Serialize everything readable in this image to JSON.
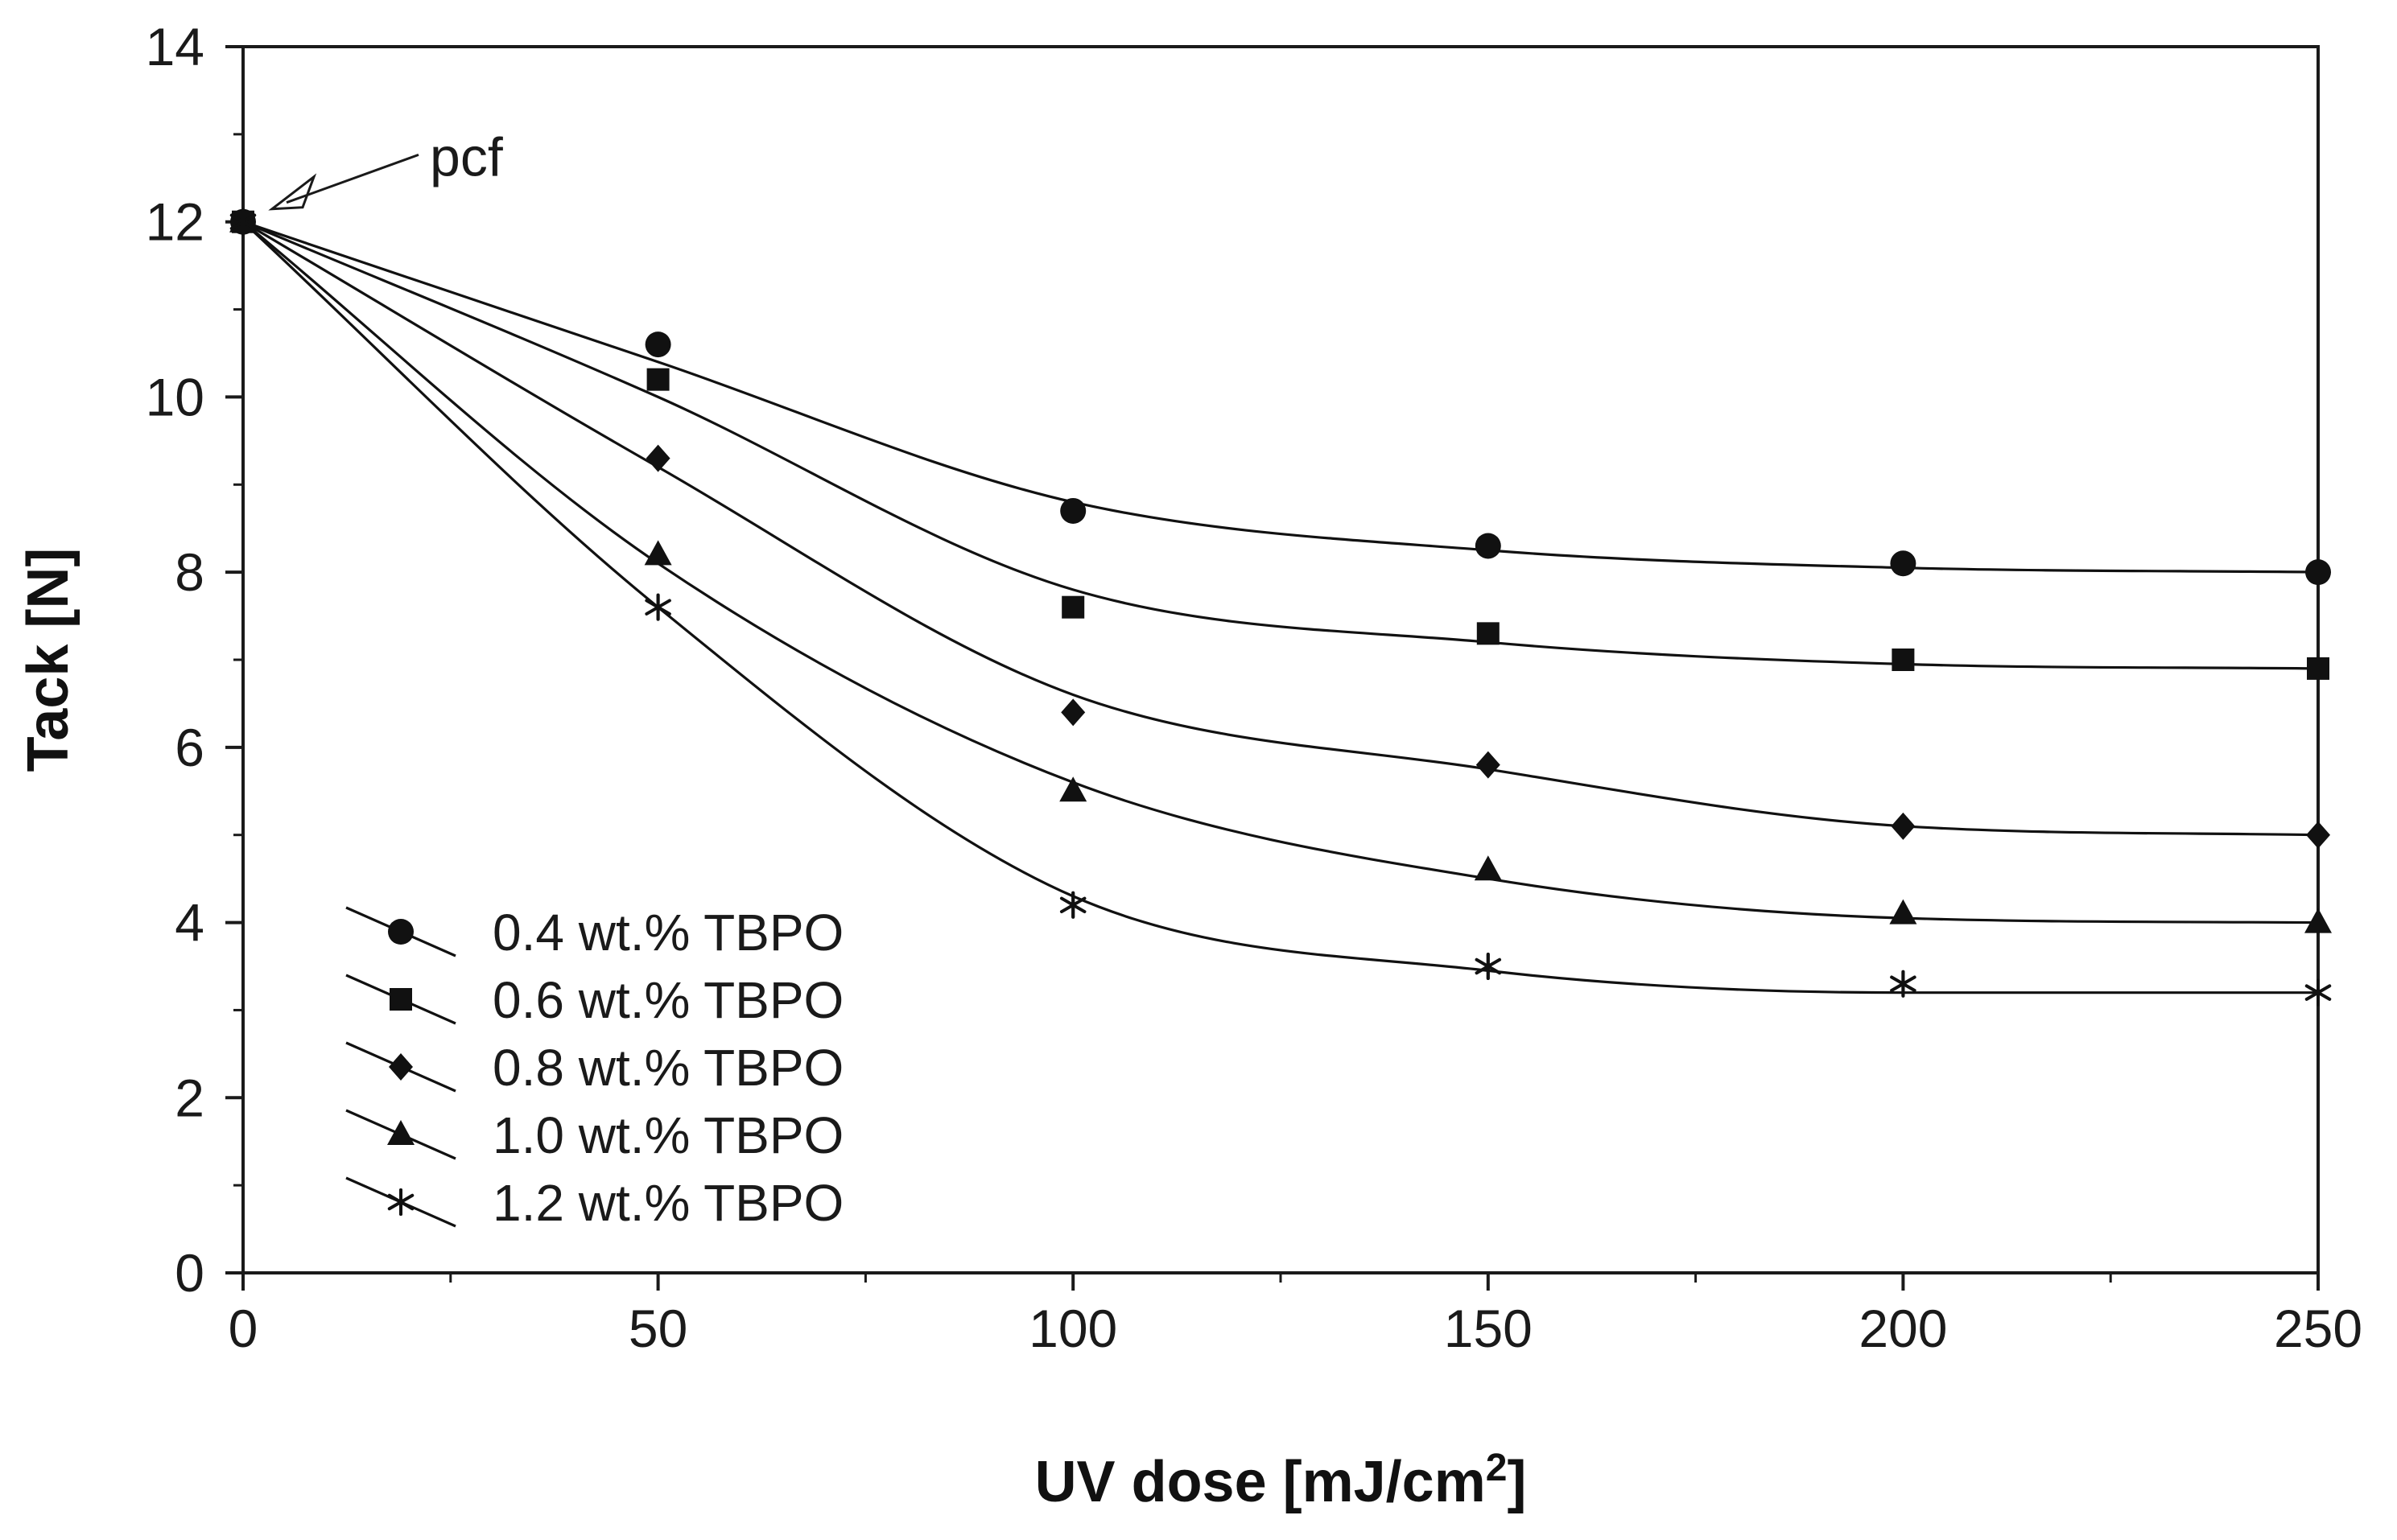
{
  "chart_data": {
    "type": "scatter",
    "title": "",
    "xlabel": "UV dose [mJ/cm",
    "xlabel_superscript": "2",
    "xlabel_suffix": "]",
    "ylabel": "Tack [N]",
    "xlim": [
      0,
      250
    ],
    "ylim": [
      0,
      14
    ],
    "x_ticks": [
      0,
      50,
      100,
      150,
      200,
      250
    ],
    "y_ticks": [
      0,
      2,
      4,
      6,
      8,
      10,
      12,
      14
    ],
    "x_minor_step": 25,
    "y_minor_step": 1,
    "grid": false,
    "legend_position": "bottom-left",
    "annotation": {
      "text": "pcf",
      "x": 0,
      "y": 12
    },
    "series": [
      {
        "name": "0.4 wt.% TBPO",
        "marker": "circle",
        "x": [
          0,
          50,
          100,
          150,
          200,
          250
        ],
        "y": [
          12.0,
          10.6,
          8.7,
          8.3,
          8.1,
          8.0
        ],
        "fit_y": [
          12.0,
          10.4,
          8.8,
          8.25,
          8.05,
          8.0
        ]
      },
      {
        "name": "0.6 wt.% TBPO",
        "marker": "square",
        "x": [
          0,
          50,
          100,
          150,
          200,
          250
        ],
        "y": [
          12.0,
          10.2,
          7.6,
          7.3,
          7.0,
          6.9
        ],
        "fit_y": [
          12.0,
          10.0,
          7.8,
          7.2,
          6.95,
          6.9
        ]
      },
      {
        "name": "0.8 wt.% TBPO",
        "marker": "diamond",
        "x": [
          0,
          50,
          100,
          150,
          200,
          250
        ],
        "y": [
          12.0,
          9.3,
          6.4,
          5.8,
          5.1,
          5.0
        ],
        "fit_y": [
          12.0,
          9.2,
          6.6,
          5.75,
          5.1,
          5.0
        ]
      },
      {
        "name": "1.0 wt.% TBPO",
        "marker": "triangle",
        "x": [
          0,
          50,
          100,
          150,
          200,
          250
        ],
        "y": [
          12.0,
          8.2,
          5.5,
          4.6,
          4.1,
          4.0
        ],
        "fit_y": [
          12.0,
          8.1,
          5.6,
          4.5,
          4.05,
          4.0
        ]
      },
      {
        "name": "1.2 wt.% TBPO",
        "marker": "asterisk",
        "x": [
          0,
          50,
          100,
          150,
          200,
          250
        ],
        "y": [
          12.0,
          7.6,
          4.2,
          3.5,
          3.3,
          3.2
        ],
        "fit_y": [
          12.0,
          7.6,
          4.3,
          3.45,
          3.2,
          3.2
        ]
      }
    ]
  }
}
